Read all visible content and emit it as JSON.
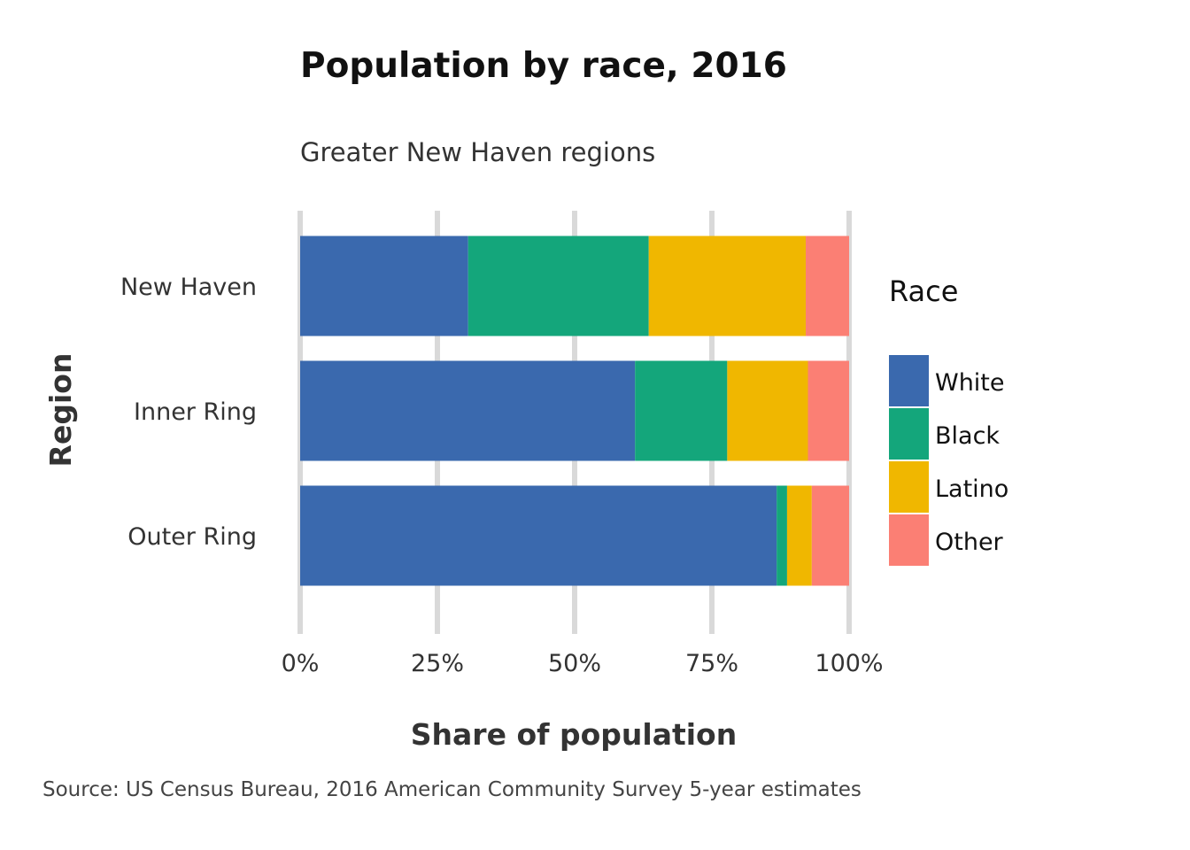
{
  "chart_data": {
    "type": "bar",
    "orientation": "horizontal",
    "stacked": "percent",
    "title": "Population by race, 2016",
    "subtitle": "Greater New Haven regions",
    "xlabel": "Share of population",
    "ylabel": "Region",
    "caption": "Source: US Census Bureau, 2016 American Community Survey 5-year estimates",
    "categories": [
      "New Haven",
      "Inner Ring",
      "Outer Ring"
    ],
    "xlim": [
      0,
      1
    ],
    "xticks": [
      0,
      0.25,
      0.5,
      0.75,
      1
    ],
    "xtick_labels": [
      "0%",
      "25%",
      "50%",
      "75%",
      "100%"
    ],
    "grid": "vertical major",
    "legend": {
      "title": "Race",
      "position": "right"
    },
    "series": [
      {
        "name": "White",
        "color": "#3A69AE",
        "values": [
          0.306,
          0.61,
          0.868
        ]
      },
      {
        "name": "Black",
        "color": "#14A67B",
        "values": [
          0.329,
          0.168,
          0.019
        ]
      },
      {
        "name": "Latino",
        "color": "#F0B700",
        "values": [
          0.286,
          0.147,
          0.045
        ]
      },
      {
        "name": "Other",
        "color": "#FB7F74",
        "values": [
          0.079,
          0.075,
          0.068
        ]
      }
    ]
  }
}
